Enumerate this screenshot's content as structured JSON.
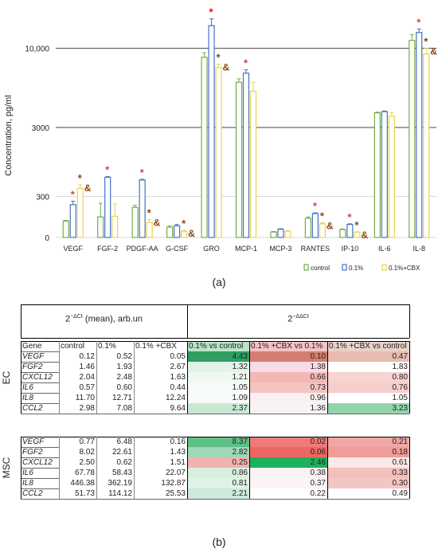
{
  "chart_data": {
    "type": "bar",
    "ylabel": "Concentration,  pg/ml",
    "y_scale": "segmented",
    "y_tick_labels": [
      "0",
      "300",
      "3000",
      "10,000"
    ],
    "categories": [
      "VEGF",
      "FGF-2",
      "PDGF-AA",
      "G-CSF",
      "GRO",
      "MCP-1",
      "MCP-3",
      "RANTES",
      "IP-10",
      "IL-6",
      "IL-8"
    ],
    "series": [
      {
        "name": "control",
        "color": "#70ad47",
        "values": [
          120,
          150,
          220,
          75,
          9200,
          7000,
          40,
          140,
          58,
          4300,
          10700
        ],
        "errors": [
          5,
          100,
          15,
          10,
          400,
          300,
          4,
          10,
          4,
          60,
          500
        ]
      },
      {
        "name": "0.1%",
        "color": "#4472c4",
        "values": [
          240,
          440,
          420,
          85,
          12000,
          7800,
          60,
          175,
          95,
          4400,
          11400
        ],
        "errors": [
          25,
          5,
          5,
          10,
          600,
          300,
          4,
          5,
          5,
          60,
          300
        ]
      },
      {
        "name": "0.1%+CBX",
        "color": "#e8d44d",
        "values": [
          360,
          155,
          110,
          45,
          8300,
          6200,
          45,
          100,
          38,
          4000,
          9500
        ],
        "errors": [
          25,
          90,
          20,
          8,
          300,
          800,
          4,
          8,
          4,
          300,
          500
        ]
      }
    ],
    "annotations": [
      {
        "category": "VEGF",
        "series": "0.1%",
        "text": "*",
        "color": "#c0504d"
      },
      {
        "category": "VEGF",
        "series": "0.1%+CBX",
        "text": "*&",
        "color": "#8b4513"
      },
      {
        "category": "FGF-2",
        "series": "0.1%",
        "text": "*",
        "color": "#c0504d"
      },
      {
        "category": "PDGF-AA",
        "series": "0.1%",
        "text": "*",
        "color": "#c0504d"
      },
      {
        "category": "PDGF-AA",
        "series": "0.1%+CBX",
        "text": "*&",
        "color": "#8b4513"
      },
      {
        "category": "G-CSF",
        "series": "0.1%+CBX",
        "text": "*&",
        "color": "#8b4513"
      },
      {
        "category": "GRO",
        "series": "0.1%",
        "text": "*",
        "color": "#ff0000"
      },
      {
        "category": "GRO",
        "series": "0.1%+CBX",
        "text": "*&",
        "color": "#8b4513"
      },
      {
        "category": "MCP-1",
        "series": "0.1%",
        "text": "*",
        "color": "#c0504d"
      },
      {
        "category": "RANTES",
        "series": "0.1%",
        "text": "*",
        "color": "#c0504d"
      },
      {
        "category": "RANTES",
        "series": "0.1%+CBX",
        "text": "*&",
        "color": "#8b4513"
      },
      {
        "category": "IP-10",
        "series": "0.1%",
        "text": "*",
        "color": "#c0504d"
      },
      {
        "category": "IP-10",
        "series": "0.1%+CBX",
        "text": "*&",
        "color": "#8b4513"
      },
      {
        "category": "IL-8",
        "series": "0.1%",
        "text": "*",
        "color": "#c0504d"
      },
      {
        "category": "IL-8",
        "series": "0.1%+CBX",
        "text": "*&",
        "color": "#8b4513"
      }
    ],
    "legend_placement": "bottom-right",
    "grid": true
  },
  "captions": {
    "a": "(a)",
    "b": "(b)"
  },
  "table": {
    "header_left_base": "2",
    "header_left_sup": "−ΔCt",
    "header_left_rest": " (mean), arb.un",
    "header_right_base": "2",
    "header_right_sup": "−ΔΔCt",
    "columns": [
      "Gene",
      "control",
      "0.1%",
      "0.1% +CBX",
      "0.1% vs control",
      "0.1% +CBX vs 0.1%",
      "0.1% +CBX vs control"
    ],
    "groups": [
      {
        "name": "EC",
        "rows": [
          {
            "gene": "VEGF",
            "italic": true,
            "vals": [
              "0.12",
              "0.52",
              "0.05",
              "4.43",
              "0.10",
              "0.47"
            ],
            "colors": [
              "#ffffff",
              "#ffffff",
              "#ffffff",
              "#2e9e63",
              "#d47e6f",
              "#e8bcb0"
            ]
          },
          {
            "gene": "FGF2",
            "italic": true,
            "vals": [
              "1.46",
              "1.93",
              "2.67",
              "1.32",
              "1.38",
              "1.83"
            ],
            "colors": [
              "#ffffff",
              "#ffffff",
              "#ffffff",
              "#e3f3e9",
              "#f8dde8",
              "#ffffff"
            ]
          },
          {
            "gene": "CXCL12",
            "italic": true,
            "vals": [
              "2.04",
              "2.48",
              "1.63",
              "1.21",
              "0.66",
              "0.80"
            ],
            "colors": [
              "#ffffff",
              "#ffffff",
              "#ffffff",
              "#f0f8f3",
              "#f3b8b6",
              "#f6d4d1"
            ]
          },
          {
            "gene": "IL6",
            "italic": true,
            "vals": [
              "0.57",
              "0.60",
              "0.44",
              "1.05",
              "0.73",
              "0.76"
            ],
            "colors": [
              "#ffffff",
              "#ffffff",
              "#ffffff",
              "#f7fbf8",
              "#f4c4c0",
              "#f6cecb"
            ]
          },
          {
            "gene": "IL8",
            "italic": true,
            "vals": [
              "11.70",
              "12.71",
              "12.24",
              "1.09",
              "0.96",
              "1.05"
            ],
            "colors": [
              "#ffffff",
              "#ffffff",
              "#ffffff",
              "#f6fbf7",
              "#f9f0f0",
              "#ffffff"
            ]
          },
          {
            "gene": "CCL2",
            "italic": true,
            "vals": [
              "2.98",
              "7.08",
              "9.64",
              "2.37",
              "1.36",
              "3.23"
            ],
            "colors": [
              "#ffffff",
              "#ffffff",
              "#ffffff",
              "#c8e8d4",
              "#f8f2f4",
              "#92d3ac"
            ]
          }
        ]
      },
      {
        "name": "MSC",
        "rows": [
          {
            "gene": "VEGF",
            "italic": true,
            "vals": [
              "0.77",
              "6.48",
              "0.16",
              "8.37",
              "0.02",
              "0.21"
            ],
            "colors": [
              "#ffffff",
              "#ffffff",
              "#ffffff",
              "#5dc086",
              "#f07a78",
              "#f0a6a4"
            ]
          },
          {
            "gene": "FGF2",
            "italic": true,
            "vals": [
              "8.02",
              "22.61",
              "1.43",
              "2.82",
              "0.06",
              "0.18"
            ],
            "colors": [
              "#ffffff",
              "#ffffff",
              "#ffffff",
              "#9fd8b4",
              "#ee6663",
              "#f09d9a"
            ]
          },
          {
            "gene": "CXCL12",
            "italic": true,
            "vals": [
              "2.50",
              "0.62",
              "1.51",
              "0.25",
              "2.46",
              "0.61"
            ],
            "colors": [
              "#ffffff",
              "#ffffff",
              "#ffffff",
              "#f1b2b0",
              "#1fb05c",
              "#fbe8e8"
            ]
          },
          {
            "gene": "IL6",
            "italic": true,
            "vals": [
              "67.78",
              "58.43",
              "22.07",
              "0.86",
              "0.38",
              "0.33"
            ],
            "colors": [
              "#ffffff",
              "#ffffff",
              "#ffffff",
              "#d8efe0",
              "#fbf3f3",
              "#f3c0be"
            ]
          },
          {
            "gene": "IL8",
            "italic": true,
            "vals": [
              "446.38",
              "362.19",
              "132.87",
              "0.81",
              "0.37",
              "0.30"
            ],
            "colors": [
              "#ffffff",
              "#ffffff",
              "#ffffff",
              "#dff2e6",
              "#fbf4f4",
              "#f3c6c4"
            ]
          },
          {
            "gene": "CCL2",
            "italic": true,
            "vals": [
              "51.73",
              "114.12",
              "25.53",
              "2.21",
              "0.22",
              "0.49"
            ],
            "colors": [
              "#ffffff",
              "#ffffff",
              "#ffffff",
              "#cdeadb",
              "#ffffff",
              "#ffffff"
            ]
          }
        ]
      }
    ]
  }
}
